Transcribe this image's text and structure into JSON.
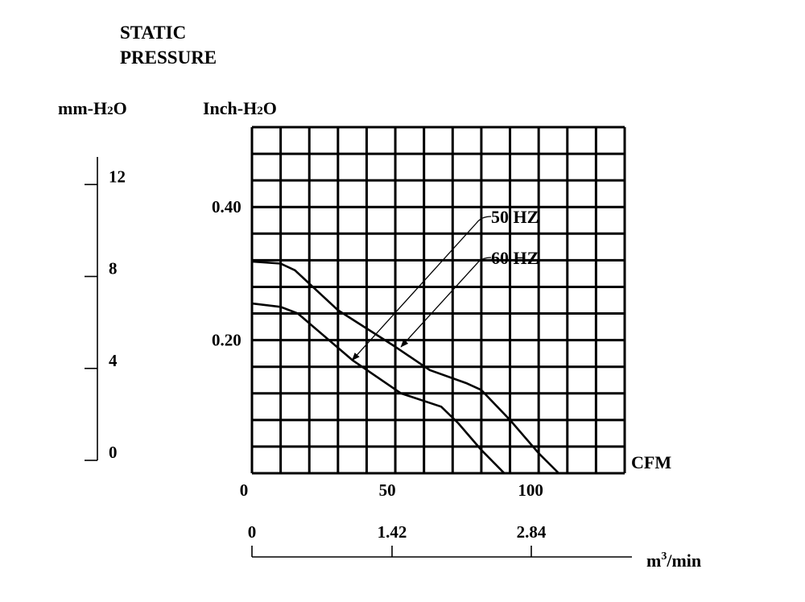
{
  "chart_data": {
    "type": "line",
    "title": "STATIC\nPRESSURE",
    "title_lines": [
      "STATIC",
      "PRESSURE"
    ],
    "y_axis_left": {
      "label": "mm-H2O",
      "label_parts": {
        "base": "mm-H",
        "sub": "2",
        "tail": "O"
      },
      "ticks": [
        "12",
        "8",
        "4",
        "0"
      ],
      "tick_values": [
        12,
        8,
        4,
        0
      ],
      "range": [
        0,
        13.2
      ]
    },
    "y_axis_inch": {
      "label": "Inch-H2O",
      "label_parts": {
        "base": "Inch-H",
        "sub": "2",
        "tail": "O"
      },
      "ticks": [
        "0.40",
        "0.20"
      ],
      "tick_values": [
        0.4,
        0.2
      ],
      "range": [
        0,
        0.52
      ]
    },
    "x_axis_cfm": {
      "label": "CFM",
      "ticks": [
        "0",
        "50",
        "100"
      ],
      "tick_values": [
        0,
        50,
        100
      ],
      "range": [
        0,
        130
      ]
    },
    "x_axis_m3": {
      "label": "m3/min",
      "label_parts": {
        "base": "m",
        "sup": "3",
        "tail": "/min"
      },
      "ticks": [
        "0",
        "1.42",
        "2.84"
      ],
      "tick_values": [
        0,
        1.42,
        2.84
      ]
    },
    "grid": true,
    "series": [
      {
        "name": "50 HZ",
        "x": [
          0,
          10,
          16,
          35,
          52,
          66,
          72,
          80,
          88
        ],
        "y": [
          0.255,
          0.25,
          0.24,
          0.17,
          0.12,
          0.1,
          0.075,
          0.035,
          0.0
        ]
      },
      {
        "name": "60 HZ",
        "x": [
          0,
          10,
          15,
          30,
          50,
          62,
          75,
          80,
          90,
          100,
          107
        ],
        "y": [
          0.318,
          0.315,
          0.305,
          0.245,
          0.19,
          0.155,
          0.135,
          0.125,
          0.08,
          0.03,
          0.0
        ]
      }
    ],
    "annotations": [
      {
        "text": "50 HZ",
        "arrow_to": {
          "x": 35,
          "y": 0.17
        }
      },
      {
        "text": "60 HZ",
        "arrow_to": {
          "x": 52,
          "y": 0.19
        }
      }
    ]
  }
}
